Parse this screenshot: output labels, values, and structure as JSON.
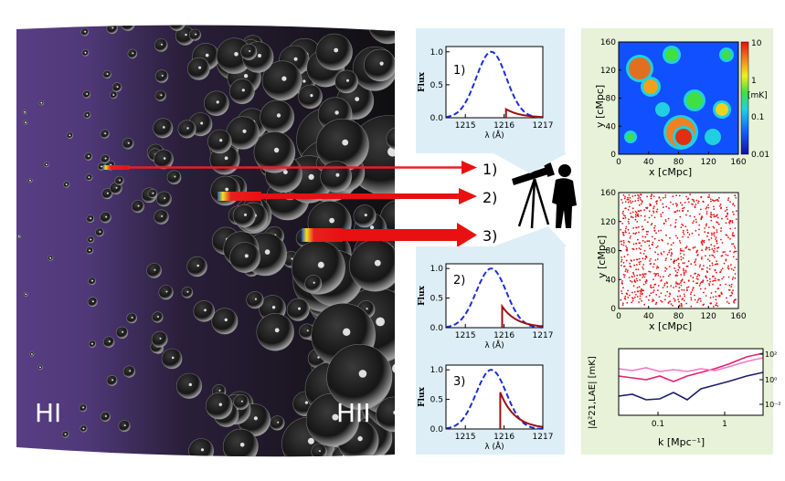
{
  "universe": {
    "left_label": "HI",
    "right_label": "HII",
    "colors": {
      "neutral": "#5a3f86",
      "bubble": "#2a2a2a",
      "background": "#0b0b0b"
    }
  },
  "sightlines": [
    {
      "label": "1)"
    },
    {
      "label": "2)"
    },
    {
      "label": "3)"
    }
  ],
  "observer": {
    "icon": "telescope-observer-icon"
  },
  "spectra": {
    "x_label": "λ (Å)",
    "y_label": "Flux",
    "x_ticks": [
      "1215",
      "1216",
      "1217"
    ],
    "y_ticks": [
      "0.0",
      "0.5",
      "1.0"
    ],
    "panels": [
      {
        "label": "1)",
        "observed_peak": 0.13,
        "observed_start": 1216.05
      },
      {
        "label": "2)",
        "observed_peak": 0.36,
        "observed_start": 1215.95
      },
      {
        "label": "3)",
        "observed_peak": 0.62,
        "observed_start": 1215.9
      }
    ],
    "intrinsic_center": 1215.67
  },
  "map21": {
    "y_label": "y [cMpc]",
    "x_label": "x [cMpc]",
    "ticks": [
      "0",
      "40",
      "80",
      "120",
      "160"
    ],
    "colorbar_ticks": [
      "10",
      "1",
      "0.1",
      "0.01"
    ],
    "colorbar_unit": "[mK]"
  },
  "lae_map": {
    "y_label": "y [cMpc]",
    "x_label": "x [cMpc]",
    "ticks": [
      "0",
      "40",
      "80",
      "120",
      "160"
    ],
    "point_color": "#e81010"
  },
  "cross_power": {
    "y_label": "|Δ²21,LAE| [mK]",
    "x_label": "k [Mpc⁻¹]",
    "x_ticks": [
      "0.1",
      "1"
    ],
    "y_ticks": [
      "10²",
      "10⁰",
      "10⁻²"
    ],
    "series_colors": [
      "#e8206a",
      "#f07ac8",
      "#1c1c6e"
    ]
  }
}
